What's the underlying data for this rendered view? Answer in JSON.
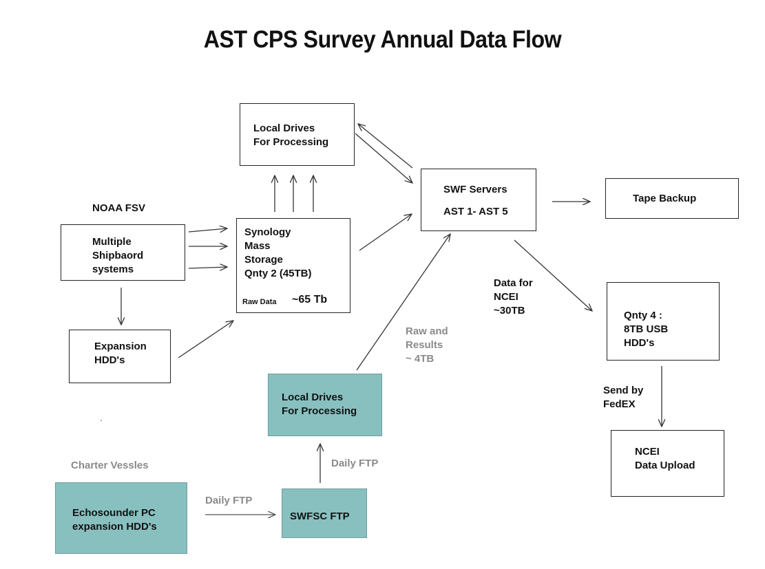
{
  "title": "AST CPS Survey Annual Data Flow",
  "colors": {
    "teal": "#88c0c0",
    "grey_text": "#8a8a8a",
    "line": "#333333",
    "teal_line": "#555555"
  },
  "boxes": {
    "local_drives_top": "Local Drives\nFor Processing",
    "swf_servers_line1": "SWF Servers",
    "swf_servers_line2": "AST 1- AST 5",
    "tape_backup": "Tape Backup",
    "multiple_shipboard": "Multiple\nShipbaord\nsystems",
    "synology": "Synology\nMass\nStorage\nQnty 2  (45TB)",
    "synology_raw_label": "Raw Data",
    "synology_raw_value": "~65 Tb",
    "expansion_hdds": "Expansion\nHDD's",
    "usb_hdds": "Qnty 4 :\n8TB USB\nHDD's",
    "ncei_upload": "NCEI\nData Upload",
    "local_drives_teal": "Local Drives\nFor Processing",
    "echosounder": "Echosounder PC\nexpansion HDD's",
    "swfsc_ftp": "SWFSC FTP"
  },
  "labels": {
    "noaa_fsv": "NOAA FSV",
    "charter_vessels": "Charter Vessles",
    "data_for_ncei": "Data for\nNCEI\n~30TB",
    "raw_and_results": "Raw and\nResults\n~ 4TB",
    "send_by_fedex": "Send by\nFedEX",
    "daily_ftp_up": "Daily FTP",
    "daily_ftp_right": "Daily FTP"
  }
}
